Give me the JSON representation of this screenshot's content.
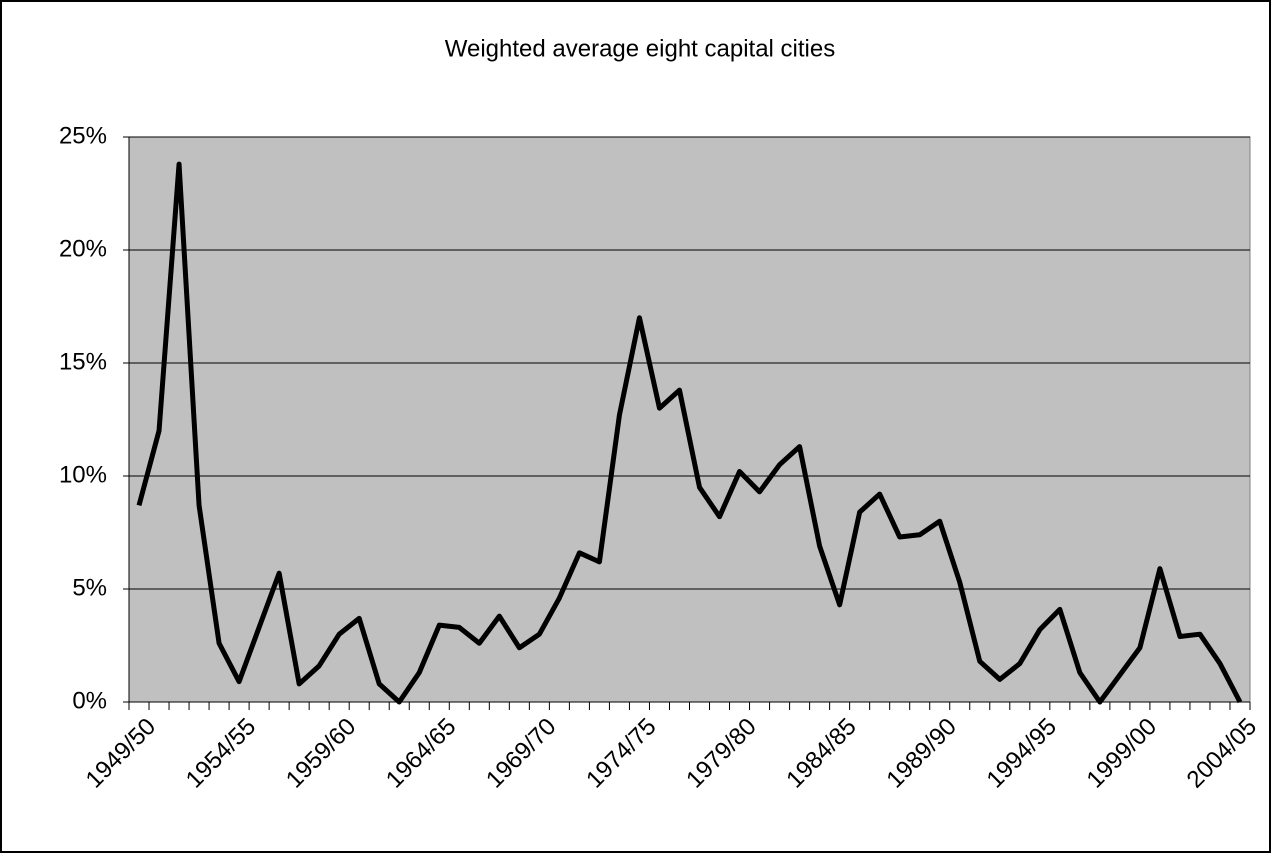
{
  "chart_data": {
    "type": "line",
    "title": "Weighted average eight capital cities",
    "categories": [
      "1949/50",
      null,
      null,
      null,
      null,
      "1954/55",
      null,
      null,
      null,
      null,
      "1959/60",
      null,
      null,
      null,
      null,
      "1964/65",
      null,
      null,
      null,
      null,
      "1969/70",
      null,
      null,
      null,
      null,
      "1974/75",
      null,
      null,
      null,
      null,
      "1979/80",
      null,
      null,
      null,
      null,
      "1984/85",
      null,
      null,
      null,
      null,
      "1989/90",
      null,
      null,
      null,
      null,
      "1994/95",
      null,
      null,
      null,
      null,
      "1999/00",
      null,
      null,
      null,
      null,
      "2004/05"
    ],
    "values": [
      8.7,
      12.0,
      23.8,
      8.7,
      2.6,
      0.9,
      3.3,
      5.7,
      0.8,
      1.6,
      3.0,
      3.7,
      0.8,
      0.0,
      1.3,
      3.4,
      3.3,
      2.6,
      3.8,
      2.4,
      3.0,
      4.6,
      6.6,
      6.2,
      12.7,
      17.0,
      13.0,
      13.8,
      9.5,
      8.2,
      10.2,
      9.3,
      10.5,
      11.3,
      6.9,
      4.3,
      8.4,
      9.2,
      7.3,
      7.4,
      8.0,
      5.3,
      1.8,
      1.0,
      1.7,
      3.2,
      4.1,
      1.3,
      0.0,
      1.2,
      2.4,
      5.9,
      2.9,
      3.0,
      1.7,
      0.0
    ],
    "color": "#000000",
    "ylim": [
      0,
      25
    ],
    "yticks": [
      {
        "value": 0,
        "label": "0%"
      },
      {
        "value": 5,
        "label": "5%"
      },
      {
        "value": 10,
        "label": "10%"
      },
      {
        "value": 15,
        "label": "15%"
      },
      {
        "value": 20,
        "label": "20%"
      },
      {
        "value": 25,
        "label": "25%"
      }
    ],
    "grid": true
  }
}
